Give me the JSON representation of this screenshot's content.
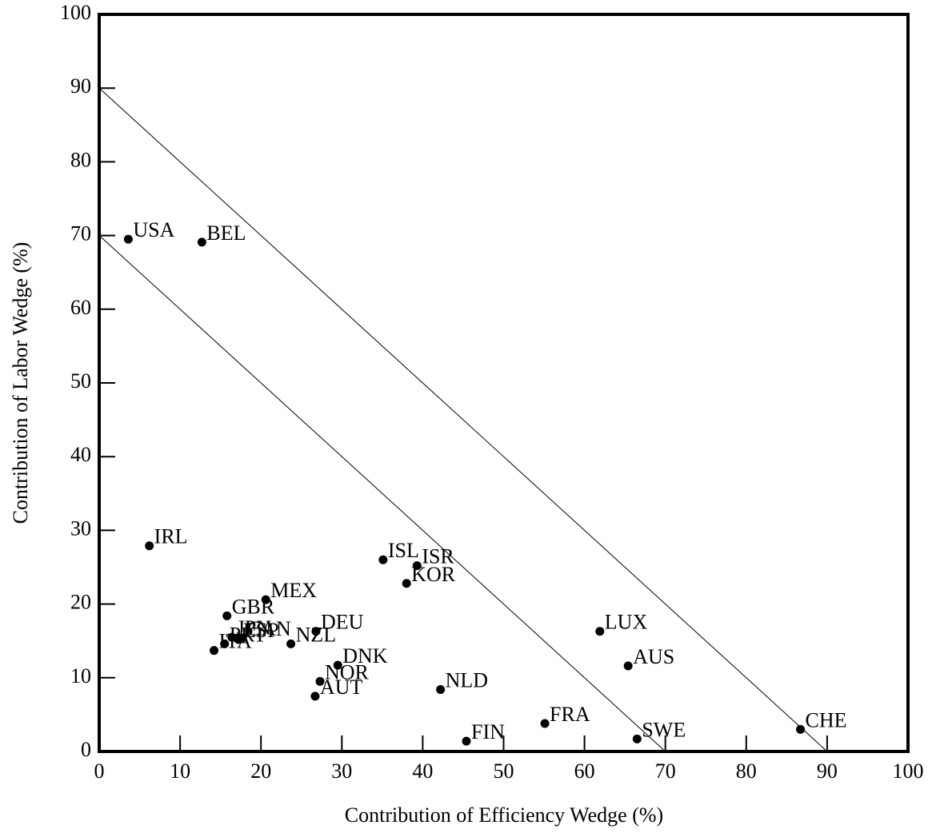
{
  "chart_data": {
    "type": "scatter",
    "x_label": "Contribution of Efficiency Wedge (%)",
    "y_label": "Contribution of Labor Wedge (%)",
    "labels": [
      "USA",
      "BEL",
      "IRL",
      "ISL",
      "ISR",
      "KOR",
      "MEX",
      "GBR",
      "JPN",
      "ESP",
      "CAN",
      "PRT",
      "ITA",
      "NZL",
      "DEU",
      "DNK",
      "NOR",
      "AUT",
      "NLD",
      "FIN",
      "FRA",
      "SWE",
      "LUX",
      "AUS",
      "CHE"
    ],
    "x": [
      3.6,
      12.7,
      6.2,
      35.1,
      39.3,
      38.0,
      20.6,
      15.8,
      16.4,
      17.2,
      17.7,
      15.5,
      14.2,
      23.7,
      26.8,
      29.5,
      27.3,
      26.7,
      42.2,
      45.4,
      55.1,
      66.5,
      61.9,
      65.4,
      86.7
    ],
    "values": [
      69.5,
      69.1,
      27.9,
      26.0,
      25.2,
      22.8,
      20.6,
      18.4,
      15.5,
      15.2,
      15.4,
      14.6,
      13.7,
      14.6,
      16.3,
      11.7,
      9.5,
      7.5,
      8.4,
      1.4,
      3.8,
      1.7,
      16.3,
      11.6,
      3.0
    ],
    "color": "#000000",
    "reference_lines": [
      {
        "x": [
          0,
          90
        ],
        "y": [
          90,
          0
        ]
      },
      {
        "x": [
          0,
          70
        ],
        "y": [
          70,
          0
        ]
      }
    ],
    "xlim": [
      0,
      100
    ],
    "ylim": [
      0,
      100
    ],
    "xticks": [
      0,
      10,
      20,
      30,
      40,
      50,
      60,
      70,
      80,
      90,
      100
    ],
    "yticks": [
      0,
      10,
      20,
      30,
      40,
      50,
      60,
      70,
      80,
      90,
      100
    ]
  }
}
